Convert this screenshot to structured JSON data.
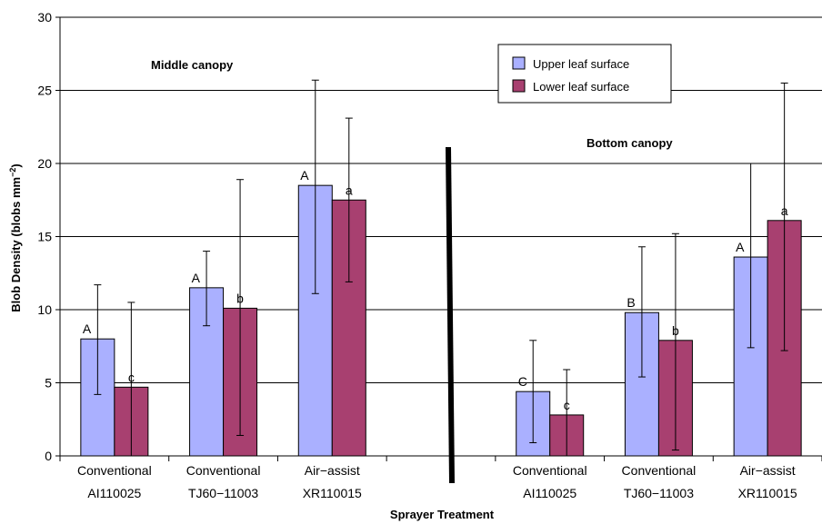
{
  "chart_data": {
    "type": "bar",
    "xlabel": "Sprayer Treatment",
    "ylabel": "Blob Density (blobs mm",
    "ylabel_sup": "−2",
    "ylabel_close": ")",
    "ylim": [
      0,
      30
    ],
    "yticks": [
      0,
      5,
      10,
      15,
      20,
      25,
      30
    ],
    "grid": "horizontal",
    "legend_position": "top-center",
    "colors": {
      "upper": "#aab0ff",
      "lower": "#a84070"
    },
    "series": [
      {
        "name": "Upper leaf surface"
      },
      {
        "name": "Lower leaf surface"
      }
    ],
    "panels": [
      {
        "label": "Middle canopy",
        "groups": [
          {
            "line1": "Conventional",
            "line2": "AI110025",
            "upper": {
              "value": 8.0,
              "err_low": 4.2,
              "err_high": 11.7,
              "letter": "A"
            },
            "lower": {
              "value": 4.7,
              "err_low": 0,
              "err_high": 10.5,
              "letter": "c"
            }
          },
          {
            "line1": "Conventional",
            "line2": "TJ60−11003",
            "upper": {
              "value": 11.5,
              "err_low": 8.9,
              "err_high": 14.0,
              "letter": "A"
            },
            "lower": {
              "value": 10.1,
              "err_low": 1.4,
              "err_high": 18.9,
              "letter": "b"
            }
          },
          {
            "line1": "Air−assist",
            "line2": "XR110015",
            "upper": {
              "value": 18.5,
              "err_low": 11.1,
              "err_high": 25.7,
              "letter": "A"
            },
            "lower": {
              "value": 17.5,
              "err_low": 11.9,
              "err_high": 23.1,
              "letter": "a"
            }
          }
        ]
      },
      {
        "label": "Bottom canopy",
        "groups": [
          {
            "line1": "Conventional",
            "line2": "AI110025",
            "upper": {
              "value": 4.4,
              "err_low": 0.9,
              "err_high": 7.9,
              "letter": "C"
            },
            "lower": {
              "value": 2.8,
              "err_low": 0,
              "err_high": 5.9,
              "letter": "c"
            }
          },
          {
            "line1": "Conventional",
            "line2": "TJ60−11003",
            "upper": {
              "value": 9.8,
              "err_low": 5.4,
              "err_high": 14.3,
              "letter": "B"
            },
            "lower": {
              "value": 7.9,
              "err_low": 0.4,
              "err_high": 15.2,
              "letter": "b"
            }
          },
          {
            "line1": "Air−assist",
            "line2": "XR110015",
            "upper": {
              "value": 13.6,
              "err_low": 7.4,
              "err_high": 20.0,
              "letter": "A"
            },
            "lower": {
              "value": 16.1,
              "err_low": 7.2,
              "err_high": 25.5,
              "letter": "a"
            }
          }
        ]
      }
    ]
  }
}
